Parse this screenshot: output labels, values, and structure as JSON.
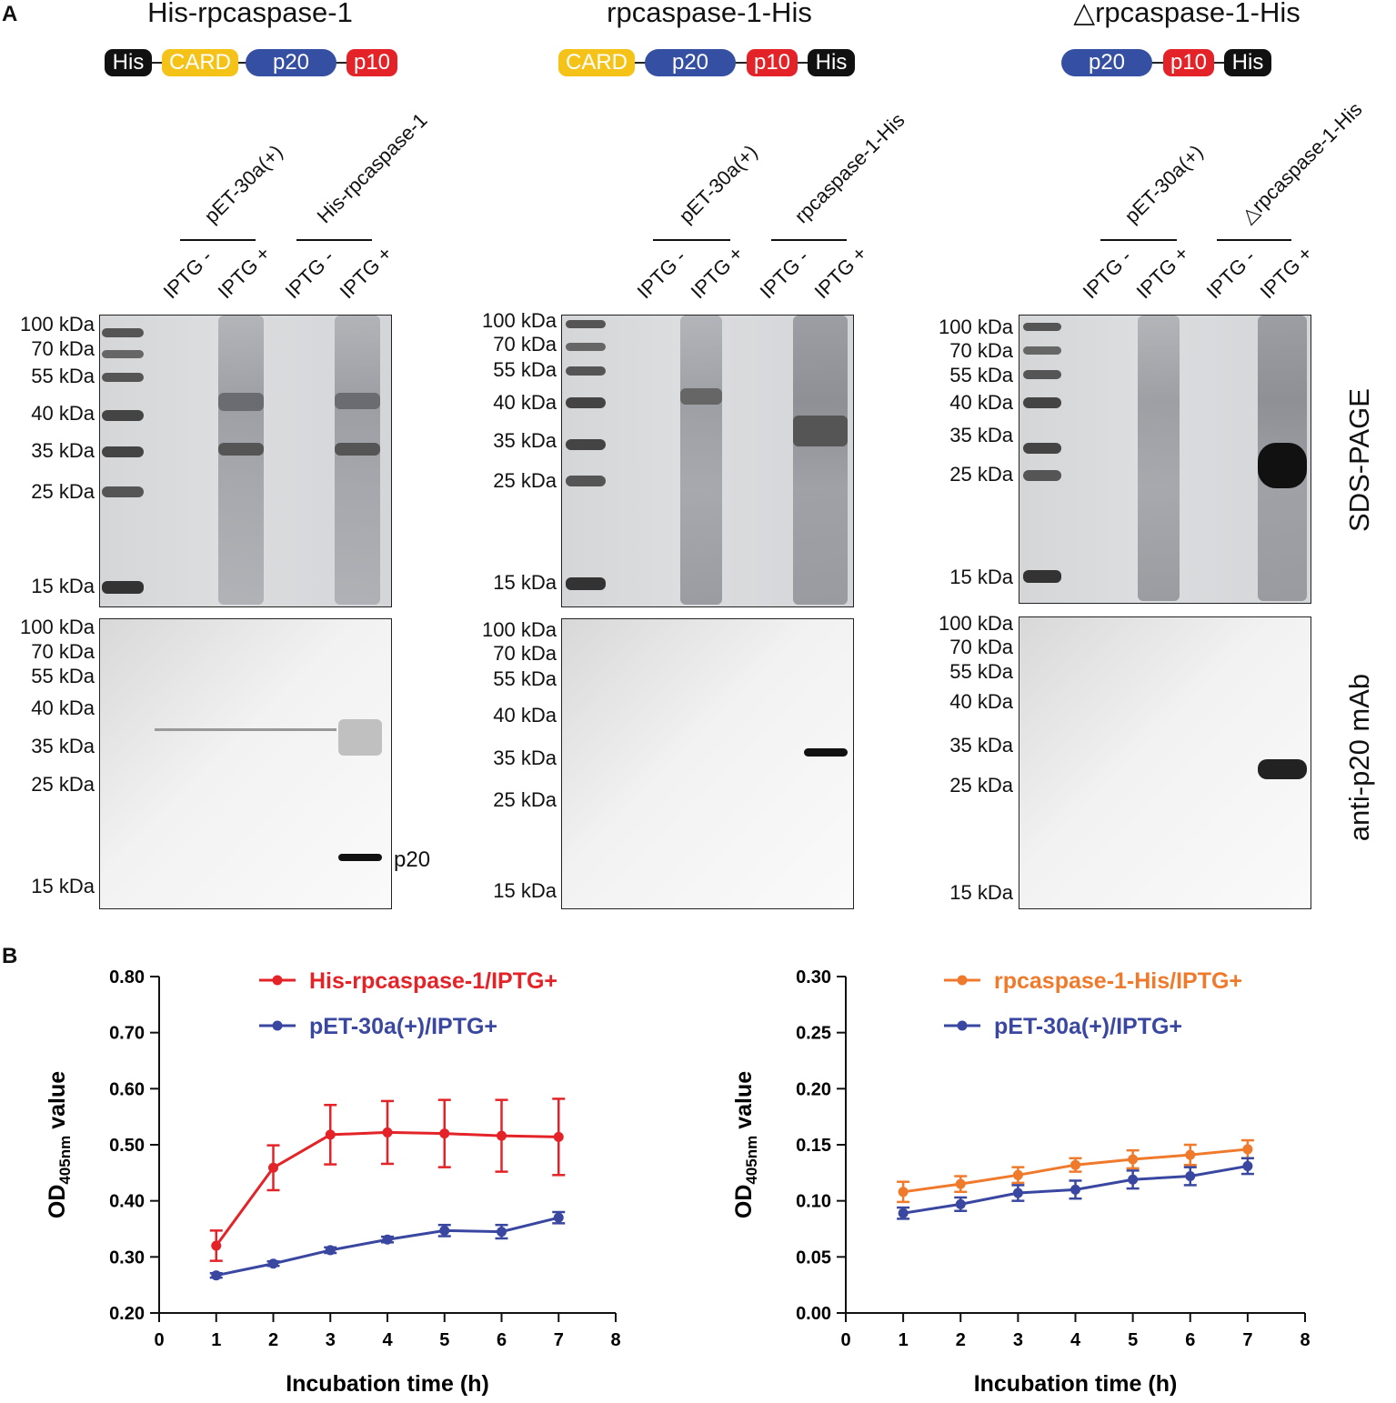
{
  "panel_a_letter": "A",
  "panel_b_letter": "B",
  "constructs": [
    {
      "title": "His-rpcaspase-1",
      "domains": [
        "His",
        "CARD",
        "p20",
        "p10"
      ],
      "group_label": "His-rpcaspase-1"
    },
    {
      "title": "rpcaspase-1-His",
      "domains": [
        "CARD",
        "p20",
        "p10",
        "His"
      ],
      "group_label": "rpcaspase-1-His"
    },
    {
      "title": "△rpcaspase-1-His",
      "domains": [
        "p20",
        "p10",
        "His"
      ],
      "group_label": "△rpcaspase-1-His"
    }
  ],
  "domain_colors": {
    "His": "#111111",
    "CARD": "#f5c218",
    "p20": "#3550a3",
    "p10": "#e42328"
  },
  "vector_label": "pET-30a(+)",
  "lane_labels": [
    "IPTG -",
    "IPTG +",
    "IPTG -",
    "IPTG +"
  ],
  "sds_label": "SDS-PAGE",
  "wb_label": "anti-p20 mAb",
  "p20_band_label": "p20",
  "markers": [
    "100 kDa",
    "70 kDa",
    "55 kDa",
    "40 kDa",
    "35 kDa",
    "25 kDa",
    "15 kDa"
  ],
  "chart_data": [
    {
      "type": "line",
      "title": "",
      "xlabel": "Incubation time (h)",
      "ylabel_main": "OD",
      "ylabel_sub": "405nm",
      "ylabel_suffix": " value",
      "xlim": [
        0,
        8
      ],
      "ylim": [
        0.2,
        0.8
      ],
      "xticks": [
        "0",
        "1",
        "2",
        "3",
        "4",
        "5",
        "6",
        "7",
        "8"
      ],
      "yticks": [
        "0.20",
        "0.30",
        "0.40",
        "0.50",
        "0.60",
        "0.70",
        "0.80"
      ],
      "x": [
        1,
        2,
        3,
        4,
        5,
        6,
        7
      ],
      "series": [
        {
          "name": "His-rpcaspase-1/IPTG+",
          "color": "#e42328",
          "values": [
            0.32,
            0.459,
            0.518,
            0.522,
            0.52,
            0.516,
            0.514
          ],
          "err": [
            0.027,
            0.04,
            0.053,
            0.056,
            0.06,
            0.064,
            0.068
          ]
        },
        {
          "name": "pET-30a(+)/IPTG+",
          "color": "#3a47a0",
          "values": [
            0.267,
            0.288,
            0.312,
            0.331,
            0.347,
            0.345,
            0.37
          ],
          "err": [
            0.004,
            0.004,
            0.005,
            0.005,
            0.01,
            0.012,
            0.01
          ]
        }
      ]
    },
    {
      "type": "line",
      "title": "",
      "xlabel": "Incubation time (h)",
      "ylabel_main": "OD",
      "ylabel_sub": "405nm",
      "ylabel_suffix": " value",
      "xlim": [
        0,
        8
      ],
      "ylim": [
        0.0,
        0.3
      ],
      "xticks": [
        "0",
        "1",
        "2",
        "3",
        "4",
        "5",
        "6",
        "7",
        "8"
      ],
      "yticks": [
        "0.00",
        "0.05",
        "0.10",
        "0.15",
        "0.20",
        "0.25",
        "0.30"
      ],
      "x": [
        1,
        2,
        3,
        4,
        5,
        6,
        7
      ],
      "series": [
        {
          "name": "rpcaspase-1-His/IPTG+",
          "color": "#f07a2c",
          "values": [
            0.108,
            0.115,
            0.123,
            0.132,
            0.137,
            0.141,
            0.146
          ],
          "err": [
            0.009,
            0.007,
            0.007,
            0.006,
            0.008,
            0.009,
            0.008
          ]
        },
        {
          "name": "pET-30a(+)/IPTG+",
          "color": "#3a47a0",
          "values": [
            0.089,
            0.097,
            0.107,
            0.11,
            0.119,
            0.122,
            0.131
          ],
          "err": [
            0.005,
            0.006,
            0.007,
            0.008,
            0.008,
            0.008,
            0.007
          ]
        }
      ]
    }
  ]
}
